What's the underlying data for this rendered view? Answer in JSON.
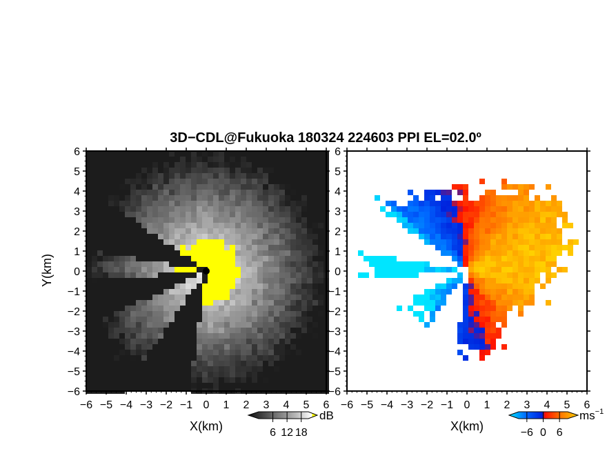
{
  "title": "3D−CDL@Fukuoka 180324 224603 PPI EL=02.0º",
  "chart_data": [
    {
      "type": "heatmap",
      "quantity": "reflectivity",
      "xlabel": "X(km)",
      "ylabel": "Y(km)",
      "xlim": [
        -6,
        6
      ],
      "ylim": [
        -6,
        6
      ],
      "x_ticks": [
        "−6",
        "−5",
        "−4",
        "−3",
        "−2",
        "−1",
        "0",
        "1",
        "2",
        "3",
        "4",
        "5",
        "6"
      ],
      "y_ticks": [
        "−6",
        "−5",
        "−4",
        "−3",
        "−2",
        "−1",
        "0",
        "1",
        "2",
        "3",
        "4",
        "5",
        "6"
      ],
      "colorbar": {
        "unit": "dB",
        "ticks": [
          "6",
          "12",
          "18"
        ],
        "values": [
          6,
          12,
          18
        ],
        "colormap": "gray-to-yellow"
      },
      "grid": false,
      "blank_sectors_deg": [
        [
          145,
          170
        ],
        [
          185,
          205
        ],
        [
          235,
          262
        ]
      ]
    },
    {
      "type": "heatmap",
      "quantity": "doppler-velocity",
      "xlabel": "X(km)",
      "ylabel": "",
      "xlim": [
        -6,
        6
      ],
      "ylim": [
        -6,
        6
      ],
      "x_ticks": [
        "−6",
        "−5",
        "−4",
        "−3",
        "−2",
        "−1",
        "0",
        "1",
        "2",
        "3",
        "4",
        "5",
        "6"
      ],
      "y_ticks": [
        "6",
        "5",
        "4",
        "3",
        "2",
        "1",
        "0",
        "−1",
        "−2",
        "−3",
        "−4",
        "−5",
        "−6"
      ],
      "colorbar": {
        "unit": "ms",
        "unit_sup": "−1",
        "ticks": [
          "−6",
          "0",
          "6"
        ],
        "values": [
          -6,
          0,
          6
        ],
        "colormap": "cyan-blue-red-yellow"
      },
      "grid": false,
      "blank_sectors_deg": [
        [
          145,
          170
        ],
        [
          185,
          205
        ],
        [
          235,
          262
        ]
      ]
    }
  ],
  "colors": {
    "reflectivity_low": "#1a1a1a",
    "reflectivity_high": "#ffffff",
    "reflectivity_saturated": "#ffff00",
    "velocity_cyan": "#00e5ff",
    "velocity_blue": "#0033ff",
    "velocity_red": "#ff2200",
    "velocity_orange": "#ff8800",
    "velocity_yellow": "#ffd000"
  }
}
